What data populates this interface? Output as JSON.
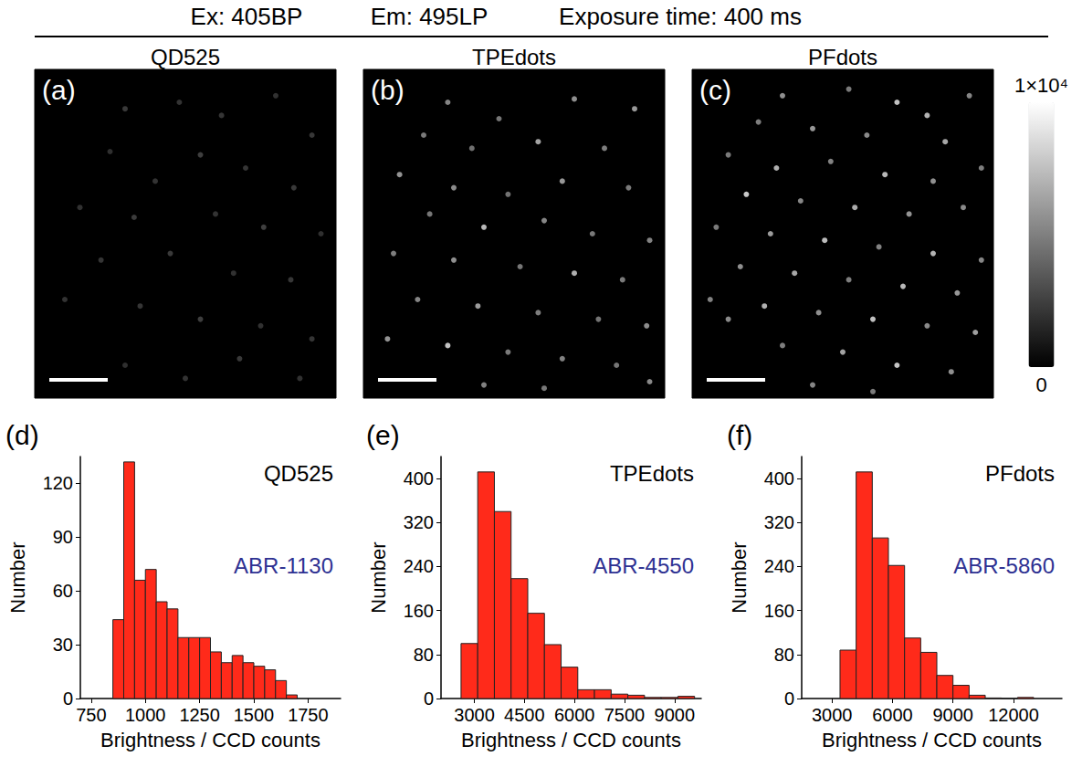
{
  "header": [
    "Ex: 405BP",
    "Em: 495LP",
    "Exposure time: 400 ms"
  ],
  "colorbar": {
    "range": [
      0,
      10000
    ],
    "ticks": [
      {
        "value": 10000,
        "label": "1×10⁴"
      },
      {
        "value": 0,
        "label": "0"
      }
    ]
  },
  "chart_data": [
    {
      "type": "image",
      "panel": "(a)",
      "title": "QD525",
      "xlim": [
        0,
        100
      ],
      "ylim": [
        0,
        100
      ],
      "tick_labels": false,
      "spots": [
        [
          30,
          88,
          2800
        ],
        [
          48,
          90,
          2500
        ],
        [
          62,
          86,
          2600
        ],
        [
          80,
          92,
          2400
        ],
        [
          92,
          80,
          2700
        ],
        [
          25,
          75,
          2300
        ],
        [
          55,
          74,
          3000
        ],
        [
          70,
          70,
          2600
        ],
        [
          40,
          66,
          2500
        ],
        [
          86,
          64,
          2800
        ],
        [
          15,
          58,
          2400
        ],
        [
          33,
          55,
          2900
        ],
        [
          60,
          56,
          2500
        ],
        [
          76,
          52,
          3100
        ],
        [
          95,
          50,
          2300
        ],
        [
          22,
          42,
          2600
        ],
        [
          45,
          44,
          2800
        ],
        [
          66,
          38,
          2400
        ],
        [
          85,
          36,
          2700
        ],
        [
          10,
          30,
          2500
        ],
        [
          35,
          28,
          2600
        ],
        [
          55,
          24,
          3000
        ],
        [
          75,
          22,
          2400
        ],
        [
          92,
          18,
          2600
        ],
        [
          30,
          10,
          2300
        ],
        [
          50,
          6,
          2500
        ],
        [
          68,
          12,
          2800
        ],
        [
          88,
          6,
          2400
        ]
      ]
    },
    {
      "type": "image",
      "panel": "(b)",
      "title": "TPEdots",
      "xlim": [
        0,
        100
      ],
      "ylim": [
        0,
        100
      ],
      "tick_labels": false,
      "spots": [
        [
          28,
          90,
          6500
        ],
        [
          45,
          85,
          5800
        ],
        [
          70,
          91,
          7000
        ],
        [
          90,
          88,
          7500
        ],
        [
          20,
          80,
          6000
        ],
        [
          36,
          76,
          5500
        ],
        [
          58,
          78,
          8000
        ],
        [
          80,
          76,
          6200
        ],
        [
          12,
          68,
          7200
        ],
        [
          30,
          64,
          6800
        ],
        [
          48,
          62,
          5600
        ],
        [
          66,
          66,
          7400
        ],
        [
          88,
          64,
          6000
        ],
        [
          22,
          56,
          5800
        ],
        [
          40,
          52,
          9000
        ],
        [
          60,
          54,
          6600
        ],
        [
          76,
          50,
          5900
        ],
        [
          95,
          48,
          6400
        ],
        [
          10,
          44,
          6200
        ],
        [
          30,
          42,
          7000
        ],
        [
          52,
          40,
          5800
        ],
        [
          70,
          38,
          8600
        ],
        [
          86,
          36,
          6000
        ],
        [
          18,
          30,
          6500
        ],
        [
          38,
          28,
          7600
        ],
        [
          58,
          26,
          6100
        ],
        [
          78,
          24,
          5700
        ],
        [
          94,
          22,
          6900
        ],
        [
          8,
          18,
          7200
        ],
        [
          28,
          16,
          9500
        ],
        [
          48,
          14,
          6000
        ],
        [
          66,
          12,
          6400
        ],
        [
          84,
          10,
          5800
        ],
        [
          40,
          4,
          6300
        ],
        [
          60,
          3,
          5900
        ],
        [
          95,
          5,
          6700
        ]
      ]
    },
    {
      "type": "image",
      "panel": "(c)",
      "title": "PFdots",
      "xlim": [
        0,
        100
      ],
      "ylim": [
        0,
        100
      ],
      "tick_labels": false,
      "spots": [
        [
          30,
          92,
          7000
        ],
        [
          52,
          94,
          6000
        ],
        [
          68,
          90,
          9500
        ],
        [
          78,
          86,
          8800
        ],
        [
          92,
          92,
          6500
        ],
        [
          22,
          84,
          6200
        ],
        [
          40,
          82,
          7400
        ],
        [
          58,
          80,
          6800
        ],
        [
          84,
          78,
          8200
        ],
        [
          12,
          74,
          6000
        ],
        [
          28,
          70,
          8600
        ],
        [
          46,
          72,
          6400
        ],
        [
          64,
          68,
          9000
        ],
        [
          80,
          66,
          7000
        ],
        [
          96,
          70,
          6200
        ],
        [
          18,
          62,
          9800
        ],
        [
          36,
          60,
          6600
        ],
        [
          54,
          58,
          8400
        ],
        [
          72,
          56,
          7200
        ],
        [
          90,
          58,
          6800
        ],
        [
          8,
          52,
          6000
        ],
        [
          26,
          50,
          7600
        ],
        [
          44,
          48,
          9200
        ],
        [
          62,
          46,
          6400
        ],
        [
          80,
          44,
          8800
        ],
        [
          96,
          42,
          6600
        ],
        [
          16,
          40,
          7000
        ],
        [
          34,
          38,
          8200
        ],
        [
          52,
          36,
          6200
        ],
        [
          70,
          34,
          9000
        ],
        [
          88,
          32,
          7400
        ],
        [
          6,
          30,
          6400
        ],
        [
          24,
          28,
          8600
        ],
        [
          42,
          26,
          7000
        ],
        [
          60,
          24,
          9400
        ],
        [
          78,
          22,
          6800
        ],
        [
          94,
          20,
          7800
        ],
        [
          30,
          16,
          6200
        ],
        [
          50,
          14,
          8000
        ],
        [
          68,
          10,
          9600
        ],
        [
          86,
          8,
          7000
        ],
        [
          40,
          4,
          6600
        ],
        [
          60,
          2,
          6000
        ],
        [
          12,
          24,
          6800
        ]
      ]
    },
    {
      "type": "histogram",
      "panel": "(d)",
      "title": "QD525",
      "annotation": {
        "text": "ABR-1130",
        "color": "#2e3192"
      },
      "xlabel": "Brightness / CCD counts",
      "ylabel": "Number",
      "color": "#ff2a1a",
      "bins": [
        850,
        900,
        950,
        1000,
        1050,
        1100,
        1150,
        1200,
        1250,
        1300,
        1350,
        1400,
        1450,
        1500,
        1550,
        1600,
        1650,
        1700
      ],
      "counts": [
        44,
        132,
        66,
        72,
        54,
        50,
        34,
        34,
        34,
        26,
        20,
        24,
        20,
        18,
        16,
        10,
        2
      ],
      "xlim": [
        700,
        1900
      ],
      "xticks": [
        750,
        1000,
        1250,
        1500,
        1750
      ],
      "ylim": [
        0,
        135
      ],
      "yticks": [
        0,
        30,
        60,
        90,
        120
      ]
    },
    {
      "type": "histogram",
      "panel": "(e)",
      "title": "TPEdots",
      "annotation": {
        "text": "ABR-4550",
        "color": "#2e3192"
      },
      "xlabel": "Brightness / CCD counts",
      "ylabel": "Number",
      "color": "#ff2a1a",
      "bins": [
        2600,
        3100,
        3600,
        4100,
        4600,
        5100,
        5600,
        6100,
        6600,
        7100,
        7600,
        8100,
        8600,
        9100,
        9600
      ],
      "counts": [
        100,
        412,
        340,
        218,
        155,
        98,
        57,
        16,
        16,
        8,
        6,
        2,
        2,
        4
      ],
      "xlim": [
        2000,
        9800
      ],
      "xticks": [
        3000,
        4500,
        6000,
        7500,
        9000
      ],
      "ylim": [
        0,
        440
      ],
      "yticks": [
        0,
        80,
        160,
        240,
        320,
        400
      ]
    },
    {
      "type": "histogram",
      "panel": "(f)",
      "title": "PFdots",
      "annotation": {
        "text": "ABR-5860",
        "color": "#2e3192"
      },
      "xlabel": "Brightness / CCD counts",
      "ylabel": "Number",
      "color": "#ff2a1a",
      "bins": [
        3400,
        4200,
        5000,
        5800,
        6600,
        7400,
        8200,
        9000,
        9800,
        10600,
        11400,
        12200,
        13000
      ],
      "counts": [
        88,
        412,
        292,
        242,
        110,
        84,
        42,
        24,
        6,
        1,
        0,
        2
      ],
      "xlim": [
        1500,
        14400
      ],
      "xticks": [
        3000,
        6000,
        9000,
        12000
      ],
      "ylim": [
        0,
        440
      ],
      "yticks": [
        0,
        80,
        160,
        240,
        320,
        400
      ]
    }
  ]
}
